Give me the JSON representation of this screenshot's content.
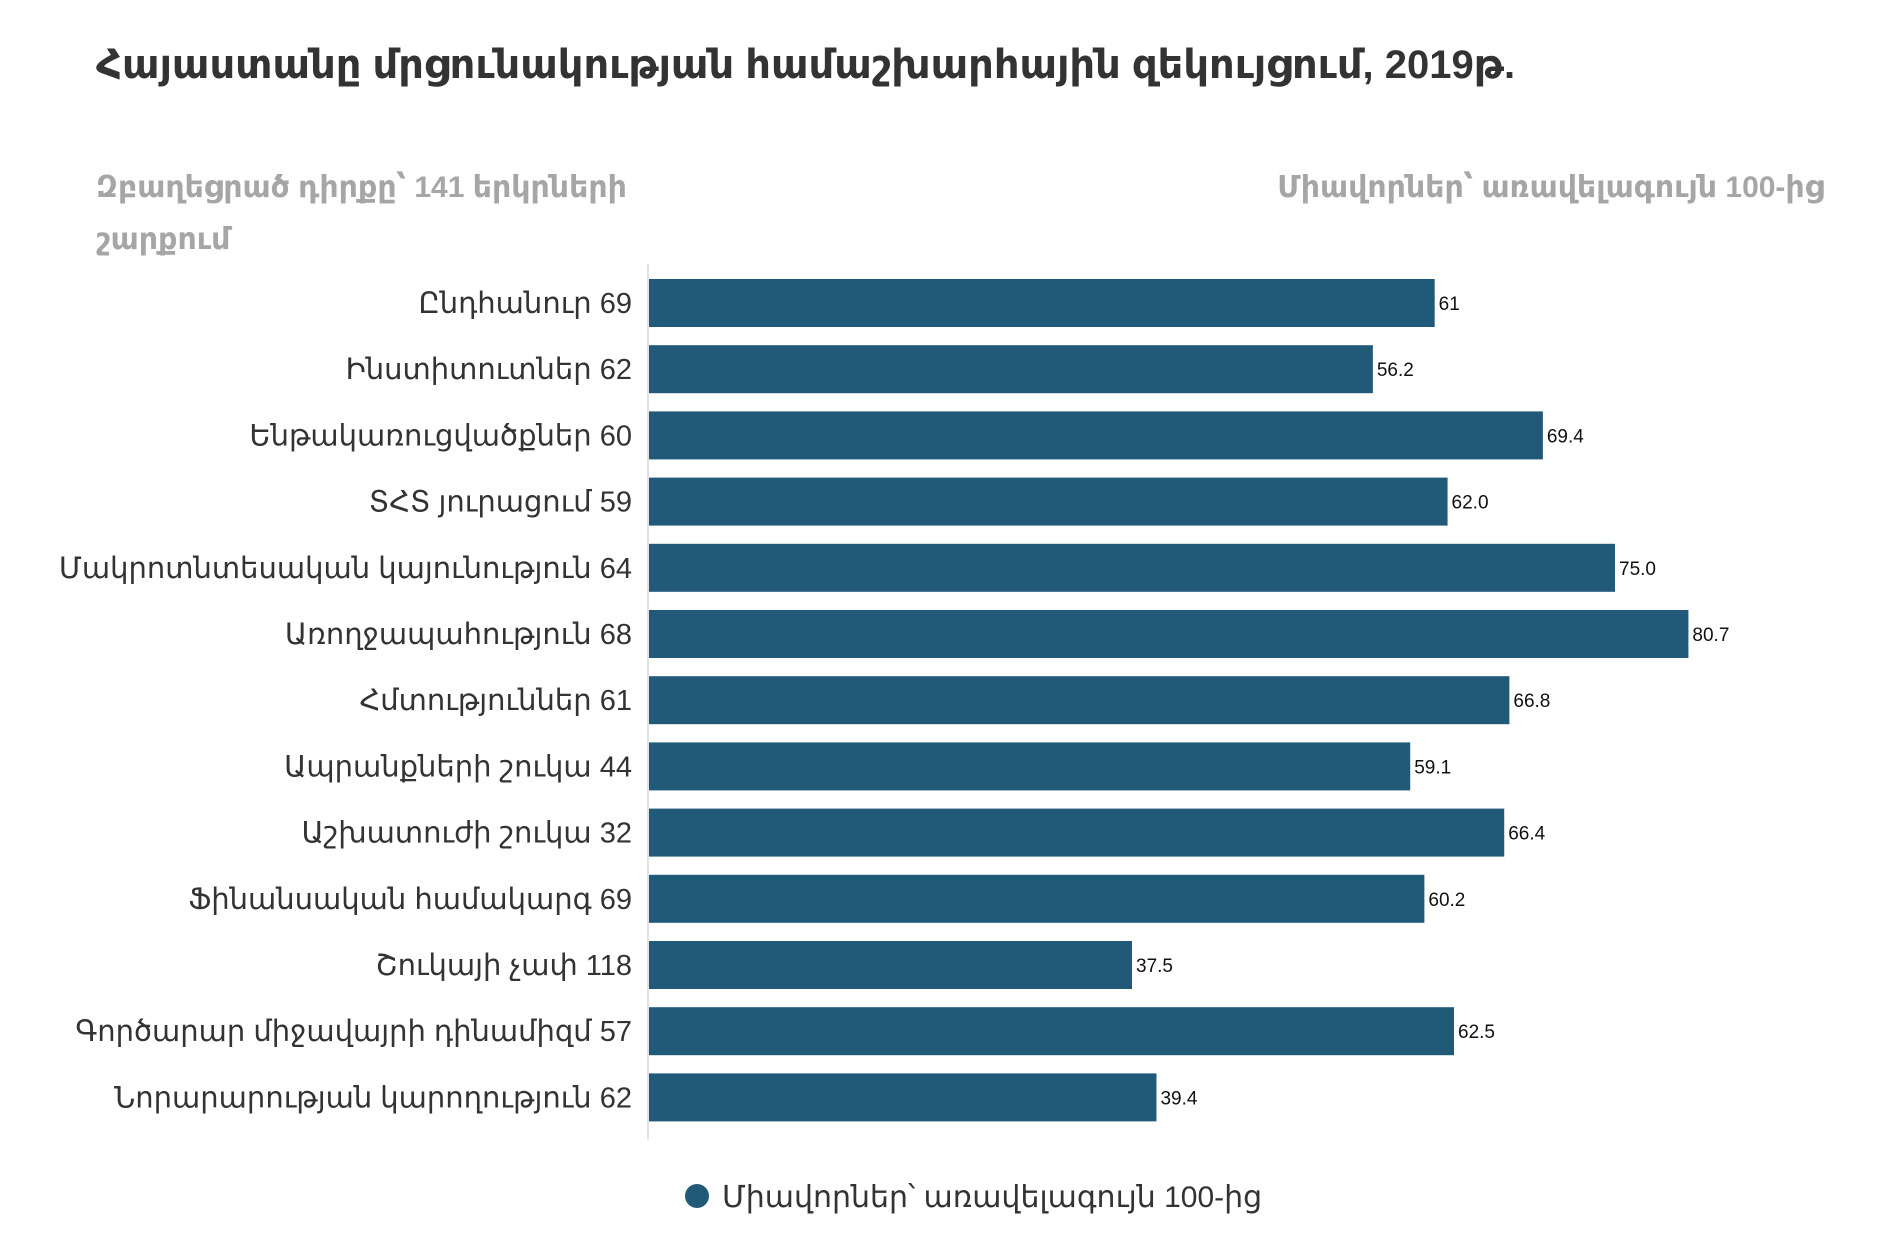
{
  "chart_data": {
    "type": "bar",
    "orientation": "horizontal",
    "title": "Հայաստանը մրցունակության համաշխարհային զեկույցում, 2019թ.",
    "subtitle_left": "Զբաղեցրած դիրքը՝ 141 երկրների շարքում",
    "subtitle_right": "Միավորներ՝ առավելագույն 100-ից",
    "categories": [
      "Ընդհանուր 69",
      "Ինստիտուտներ 62",
      "Ենթակառուցվածքներ 60",
      "ՏՀՏ յուրացում 59",
      "Մակրոտնտեսական կայունություն 64",
      "Առողջապահություն 68",
      "Հմտություններ 61",
      "Ապրանքների շուկա 44",
      "Աշխատուժի շուկա 32",
      "Ֆինանսական համակարգ 69",
      "Շուկայի չափ 118",
      "Գործարար միջավայրի դինամիզմ 57",
      "Նորարարության կարողություն 62"
    ],
    "series": [
      {
        "name": "Միավորներ՝ առավելագույն 100-ից",
        "values": [
          61,
          56.2,
          69.4,
          62.0,
          75.0,
          80.7,
          66.8,
          59.1,
          66.4,
          60.2,
          37.5,
          62.5,
          39.4
        ],
        "labels": [
          "61",
          "56.2",
          "69.4",
          "62.0",
          "75.0",
          "80.7",
          "66.8",
          "59.1",
          "66.4",
          "60.2",
          "37.5",
          "62.5",
          "39.4"
        ]
      }
    ],
    "xlim": [
      0,
      100
    ],
    "grid": false,
    "legend": "bottom-center",
    "bar_color": "#215a79"
  }
}
